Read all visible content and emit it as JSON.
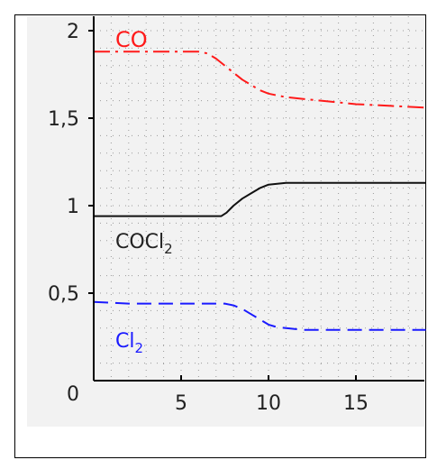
{
  "chart_data": {
    "type": "line",
    "title": "",
    "xlabel": "",
    "ylabel": "",
    "xlim": [
      0,
      19
    ],
    "ylim": [
      0,
      2
    ],
    "x_ticks": [
      {
        "value": 5,
        "label": "5"
      },
      {
        "value": 10,
        "label": "10"
      },
      {
        "value": 15,
        "label": "15"
      }
    ],
    "y_ticks": [
      {
        "value": 0,
        "label": "0"
      },
      {
        "value": 0.5,
        "label": "0,5"
      },
      {
        "value": 1,
        "label": "1"
      },
      {
        "value": 1.5,
        "label": "1,5"
      },
      {
        "value": 2,
        "label": "2"
      }
    ],
    "grid": true,
    "series": [
      {
        "name": "CO",
        "color": "#ff1a1a",
        "dash": "dash-dot",
        "x": [
          0,
          6,
          6.5,
          7,
          7.5,
          8,
          8.5,
          9,
          9.5,
          10,
          10.5,
          11,
          12,
          13,
          14,
          15,
          16,
          17,
          18,
          19
        ],
        "y": [
          1.88,
          1.88,
          1.87,
          1.84,
          1.8,
          1.76,
          1.72,
          1.69,
          1.66,
          1.64,
          1.63,
          1.62,
          1.61,
          1.6,
          1.59,
          1.58,
          1.575,
          1.57,
          1.565,
          1.56
        ]
      },
      {
        "name": "COCl₂",
        "color": "#111111",
        "dash": "solid",
        "x": [
          0,
          7.3,
          7.6,
          8,
          8.5,
          9,
          9.5,
          10,
          10.5,
          11,
          12,
          19
        ],
        "y": [
          0.94,
          0.94,
          0.96,
          1.0,
          1.04,
          1.07,
          1.1,
          1.12,
          1.125,
          1.13,
          1.13,
          1.13
        ]
      },
      {
        "name": "Cl₂",
        "color": "#1a1aff",
        "dash": "dashed",
        "x": [
          0,
          2,
          4,
          6,
          7,
          7.5,
          8,
          8.5,
          9,
          9.5,
          10,
          10.5,
          11,
          11.5,
          12,
          19
        ],
        "y": [
          0.45,
          0.44,
          0.44,
          0.44,
          0.44,
          0.44,
          0.43,
          0.41,
          0.38,
          0.35,
          0.32,
          0.305,
          0.3,
          0.295,
          0.29,
          0.29
        ]
      }
    ],
    "labels": {
      "co": "CO",
      "cocl2_base": "COCl",
      "cocl2_sub": "2",
      "cl2_base": "Cl",
      "cl2_sub": "2"
    }
  }
}
